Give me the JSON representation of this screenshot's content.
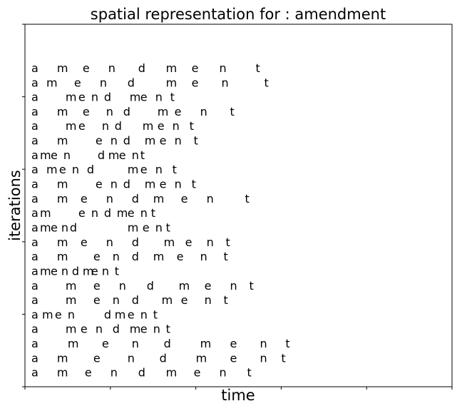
{
  "chart_data": {
    "type": "scatter",
    "title": "spatial representation for : amendment",
    "xlabel": "time",
    "ylabel": "iterations",
    "word": "amendment",
    "xlim": [
      0,
      100
    ],
    "ylim": [
      0,
      25
    ],
    "rows": [
      {
        "y": 22,
        "x": [
          1.5,
          7.5,
          13.5,
          19.5,
          26.5,
          33,
          39,
          45.5,
          54
        ]
      },
      {
        "y": 21,
        "x": [
          1.5,
          5,
          11.5,
          17.5,
          24,
          33,
          39,
          46,
          56
        ]
      },
      {
        "y": 20,
        "x": [
          1.5,
          9.5,
          12.5,
          15.5,
          18.5,
          24.5,
          27,
          30.5,
          34
        ]
      },
      {
        "y": 19,
        "x": [
          1.5,
          7.5,
          13.5,
          19,
          23,
          31,
          35,
          41,
          48
        ]
      },
      {
        "y": 18,
        "x": [
          1.5,
          9.5,
          12.5,
          18,
          21,
          27.5,
          31,
          34.5,
          38.5
        ]
      },
      {
        "y": 17,
        "x": [
          1.5,
          7.5,
          16.5,
          20,
          23,
          28,
          31.5,
          35,
          39.5
        ]
      },
      {
        "y": 16,
        "x": [
          1.5,
          3.5,
          6,
          9,
          17,
          19.5,
          22,
          25,
          27
        ]
      },
      {
        "y": 15,
        "x": [
          1.5,
          5,
          8,
          11,
          14.5,
          24,
          27,
          30.5,
          34.5
        ]
      },
      {
        "y": 14,
        "x": [
          1.5,
          7.5,
          16.5,
          20,
          23,
          28,
          31.5,
          35,
          39
        ]
      },
      {
        "y": 13,
        "x": [
          1.5,
          7.5,
          13,
          19,
          25,
          30,
          36.5,
          42.5,
          51.5
        ]
      },
      {
        "y": 12,
        "x": [
          1.5,
          3.5,
          12.5,
          15.5,
          18.5,
          21.5,
          24,
          27,
          29.5
        ]
      },
      {
        "y": 11,
        "x": [
          1.5,
          3.5,
          6,
          8.5,
          10.5,
          24,
          27.5,
          30.5,
          33
        ]
      },
      {
        "y": 10,
        "x": [
          1.5,
          7.5,
          13,
          19,
          25,
          32.5,
          37.5,
          42.5,
          47
        ]
      },
      {
        "y": 9,
        "x": [
          1.5,
          7.5,
          16,
          20.5,
          25,
          30,
          35.5,
          41,
          46.5
        ]
      },
      {
        "y": 8,
        "x": [
          1.5,
          3.5,
          6,
          8.5,
          11,
          13.5,
          15.5,
          18,
          21
        ]
      },
      {
        "y": 7,
        "x": [
          1.5,
          9.5,
          16,
          22,
          28.5,
          36,
          42,
          48,
          52.5
        ]
      },
      {
        "y": 6,
        "x": [
          1.5,
          9.5,
          16,
          20.5,
          25,
          32,
          36.5,
          42,
          46.5
        ]
      },
      {
        "y": 5,
        "x": [
          1.5,
          4,
          7,
          10,
          18.5,
          21,
          24,
          27,
          30
        ]
      },
      {
        "y": 4,
        "x": [
          1.5,
          9.5,
          13,
          16.5,
          20.5,
          24.5,
          27,
          30,
          33
        ]
      },
      {
        "y": 3,
        "x": [
          1.5,
          10,
          18,
          25,
          32.5,
          41,
          48,
          55,
          61
        ]
      },
      {
        "y": 2,
        "x": [
          1.5,
          7.5,
          16,
          24,
          31.5,
          40,
          48,
          55,
          60
        ]
      },
      {
        "y": 1,
        "x": [
          1.5,
          7.5,
          14,
          20,
          26.5,
          33,
          39.5,
          45.5,
          52
        ]
      }
    ],
    "grid": false,
    "xticks_labeled": false,
    "yticks_labeled": false
  }
}
